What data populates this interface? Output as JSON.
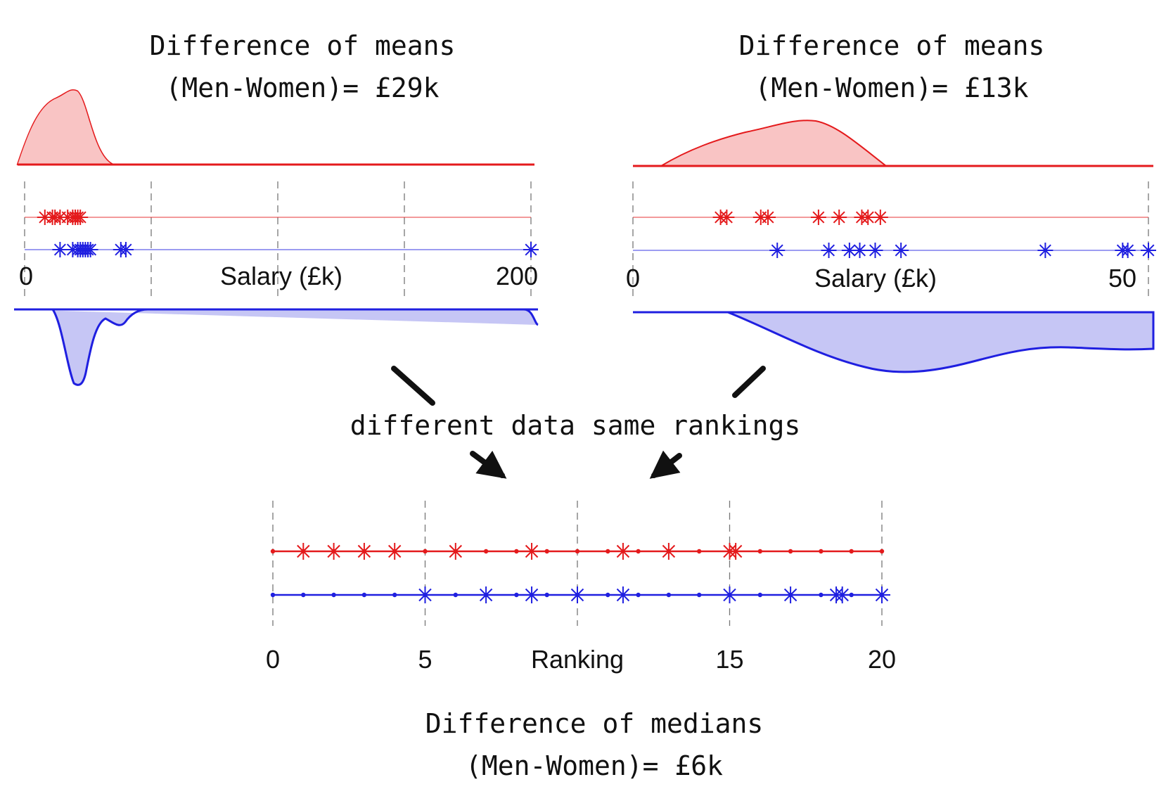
{
  "annotations": {
    "left_title_1": "Difference of means",
    "left_title_2": "(Men-Women)= £29k",
    "right_title_1": "Difference of means",
    "right_title_2": "(Men-Women)= £13k",
    "middle_note": "different data same rankings",
    "bottom_title_1": "Difference of medians",
    "bottom_title_2": "(Men-Women)= £6k"
  },
  "colors": {
    "men": "#e41a1c",
    "women": "#1f1fe0",
    "men_fill": "#f9c4c4",
    "women_fill": "#c6c6f5"
  },
  "chart_data": [
    {
      "type": "scatter",
      "title": "Difference of means (Men-Women)= £29k",
      "xlabel": "Salary (£k)",
      "xlim": [
        0,
        200
      ],
      "ticks": [
        "0",
        "200"
      ],
      "series": [
        {
          "name": "Men",
          "values": [
            8,
            11,
            12,
            14,
            17,
            19,
            20,
            21,
            22
          ]
        },
        {
          "name": "Women",
          "values": [
            14,
            19,
            21,
            22,
            23,
            24,
            25,
            26,
            38,
            40,
            200
          ]
        }
      ]
    },
    {
      "type": "scatter",
      "title": "Difference of means (Men-Women)= £13k",
      "xlabel": "Salary (£k)",
      "xlim": [
        0,
        50
      ],
      "ticks": [
        "0",
        "50"
      ],
      "series": [
        {
          "name": "Men",
          "values": [
            8.5,
            9.1,
            12.4,
            13.1,
            18,
            20,
            22.2,
            22.8,
            24
          ]
        },
        {
          "name": "Women",
          "values": [
            14,
            19,
            21,
            22,
            23.5,
            26,
            40,
            47.5,
            48.0,
            50
          ]
        }
      ]
    },
    {
      "type": "scatter",
      "title": "Difference of medians (Men-Women)= £6k",
      "xlabel": "Ranking",
      "xlim": [
        0,
        20
      ],
      "ticks": [
        "0",
        "5",
        "Ranking",
        "15",
        "20"
      ],
      "series": [
        {
          "name": "Men",
          "values": [
            1,
            2,
            3,
            4,
            6,
            8.5,
            11.5,
            13,
            15,
            15.2
          ]
        },
        {
          "name": "Women",
          "values": [
            5,
            7,
            8.5,
            10,
            11.5,
            15,
            17,
            18.5,
            18.7,
            20
          ]
        }
      ]
    }
  ]
}
